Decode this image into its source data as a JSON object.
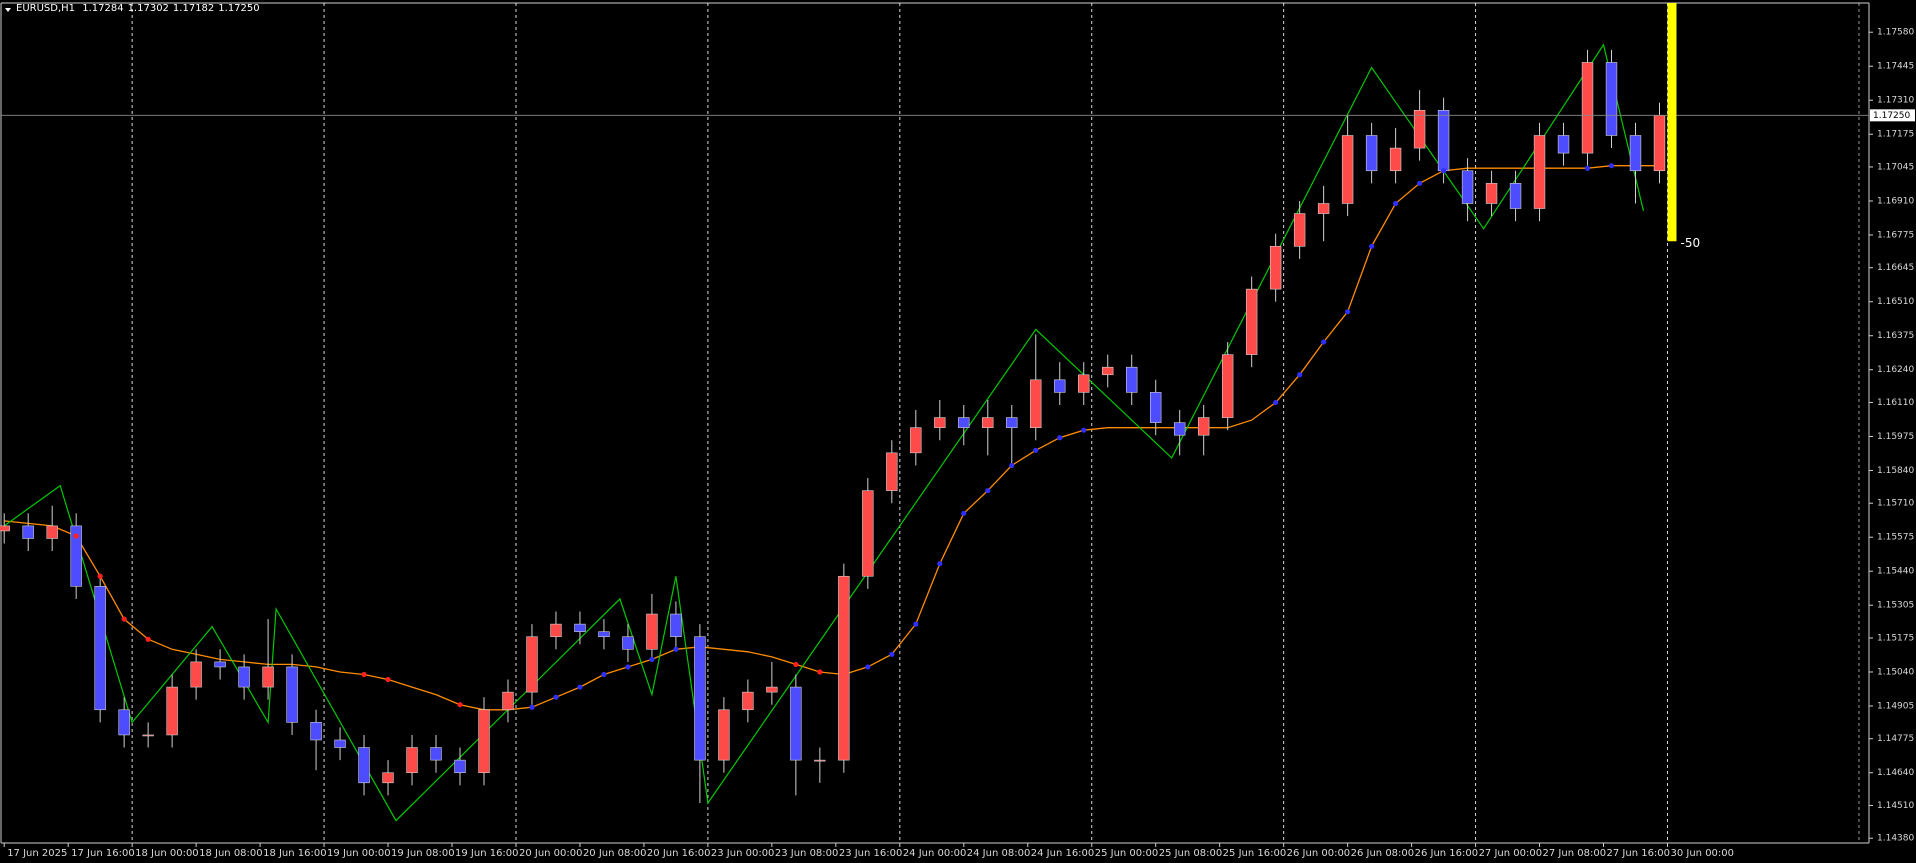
{
  "chart_data": {
    "type": "candlestick",
    "header": {
      "symbol": "EURUSD,H1",
      "open": "1.17284",
      "high": "1.17302",
      "low": "1.17182",
      "close": "1.17250"
    },
    "up_color": "#ff4a4a",
    "down_color": "#4d4dff",
    "x": [
      0,
      3,
      6,
      9,
      12,
      15,
      18,
      21,
      24,
      27,
      30,
      33,
      36,
      39,
      42,
      45,
      48,
      51,
      54,
      57,
      60,
      63,
      66,
      69,
      72,
      75,
      78,
      81,
      84,
      87,
      90,
      93,
      96,
      99,
      102,
      105,
      108,
      111,
      114,
      117,
      120,
      123,
      126,
      129,
      132,
      135,
      138,
      141,
      144,
      147,
      150,
      153,
      156,
      159,
      162,
      165,
      168,
      171,
      174,
      177,
      180,
      183,
      186,
      189,
      192,
      195,
      198,
      201,
      204,
      207
    ],
    "open": [
      1.156,
      1.1562,
      1.1557,
      1.1562,
      1.1538,
      1.1489,
      1.1479,
      1.1479,
      1.1498,
      1.1508,
      1.1506,
      1.1498,
      1.1506,
      1.1484,
      1.1477,
      1.1474,
      1.146,
      1.1464,
      1.1474,
      1.1469,
      1.1464,
      1.1489,
      1.1496,
      1.1518,
      1.1523,
      1.152,
      1.1518,
      1.1513,
      1.1527,
      1.1518,
      1.1469,
      1.1489,
      1.1496,
      1.1498,
      1.1469,
      1.1469,
      1.1542,
      1.1576,
      1.1591,
      1.1601,
      1.1605,
      1.1601,
      1.1605,
      1.1601,
      1.162,
      1.1615,
      1.1622,
      1.1625,
      1.1615,
      1.1603,
      1.1598,
      1.1605,
      1.163,
      1.1656,
      1.1673,
      1.1686,
      1.169,
      1.1717,
      1.1703,
      1.1712,
      1.1727,
      1.1703,
      1.169,
      1.1698,
      1.1688,
      1.1717,
      1.171,
      1.1746,
      1.1717,
      1.1703
    ],
    "high": [
      1.1567,
      1.1567,
      1.157,
      1.1567,
      1.1543,
      1.1494,
      1.1484,
      1.1503,
      1.1513,
      1.1513,
      1.1511,
      1.1525,
      1.1511,
      1.1489,
      1.1482,
      1.1479,
      1.1469,
      1.1479,
      1.1479,
      1.1474,
      1.1494,
      1.1501,
      1.1523,
      1.1528,
      1.1528,
      1.1525,
      1.1523,
      1.1535,
      1.1532,
      1.1523,
      1.1494,
      1.1501,
      1.1508,
      1.1503,
      1.1474,
      1.1547,
      1.1581,
      1.1596,
      1.1608,
      1.1612,
      1.161,
      1.1612,
      1.161,
      1.1638,
      1.1627,
      1.1627,
      1.163,
      1.163,
      1.162,
      1.1608,
      1.161,
      1.1635,
      1.1661,
      1.1678,
      1.1691,
      1.1697,
      1.1725,
      1.1722,
      1.172,
      1.1735,
      1.1732,
      1.1708,
      1.1703,
      1.1703,
      1.1722,
      1.1722,
      1.1751,
      1.1751,
      1.1722,
      1.173
    ],
    "low": [
      1.1555,
      1.1552,
      1.1552,
      1.1533,
      1.1484,
      1.1474,
      1.1474,
      1.1474,
      1.1493,
      1.1501,
      1.1493,
      1.1493,
      1.1479,
      1.1465,
      1.1469,
      1.1455,
      1.1455,
      1.1459,
      1.1464,
      1.1459,
      1.1459,
      1.1484,
      1.1491,
      1.1513,
      1.1515,
      1.1513,
      1.1508,
      1.1508,
      1.1513,
      1.1452,
      1.1464,
      1.1484,
      1.1491,
      1.1455,
      1.146,
      1.1464,
      1.1537,
      1.1571,
      1.1586,
      1.1596,
      1.1594,
      1.159,
      1.1585,
      1.1596,
      1.161,
      1.161,
      1.1617,
      1.161,
      1.1598,
      1.159,
      1.159,
      1.16,
      1.1625,
      1.1651,
      1.1668,
      1.1675,
      1.1685,
      1.1698,
      1.1698,
      1.1707,
      1.1698,
      1.1683,
      1.1685,
      1.1683,
      1.1683,
      1.1705,
      1.1705,
      1.1712,
      1.169,
      1.1698
    ],
    "close": [
      1.1562,
      1.1557,
      1.1562,
      1.1538,
      1.1489,
      1.1479,
      1.1479,
      1.1498,
      1.1508,
      1.1506,
      1.1498,
      1.1506,
      1.1484,
      1.1477,
      1.1474,
      1.146,
      1.1464,
      1.1474,
      1.1469,
      1.1464,
      1.1489,
      1.1496,
      1.1518,
      1.1523,
      1.152,
      1.1518,
      1.1513,
      1.1527,
      1.1518,
      1.1469,
      1.1489,
      1.1496,
      1.1498,
      1.1469,
      1.1469,
      1.1542,
      1.1576,
      1.1591,
      1.1601,
      1.1605,
      1.1601,
      1.1605,
      1.1601,
      1.162,
      1.1615,
      1.1622,
      1.1625,
      1.1615,
      1.1603,
      1.1598,
      1.1605,
      1.163,
      1.1656,
      1.1673,
      1.1686,
      1.169,
      1.1717,
      1.1703,
      1.1712,
      1.1727,
      1.1703,
      1.169,
      1.1698,
      1.1688,
      1.1717,
      1.171,
      1.1746,
      1.1717,
      1.1703,
      1.1725
    ],
    "ma": {
      "color": "#ff8c00",
      "values": [
        1.1564,
        1.1563,
        1.1562,
        1.1558,
        1.1542,
        1.1525,
        1.1517,
        1.1513,
        1.1511,
        1.1509,
        1.1508,
        1.1507,
        1.1507,
        1.1506,
        1.1504,
        1.1503,
        1.1501,
        1.1498,
        1.1495,
        1.1491,
        1.1489,
        1.1489,
        1.149,
        1.1494,
        1.1498,
        1.1503,
        1.1506,
        1.1509,
        1.1513,
        1.1514,
        1.1513,
        1.1512,
        1.151,
        1.1507,
        1.1504,
        1.1503,
        1.1506,
        1.1511,
        1.1523,
        1.1547,
        1.1567,
        1.1576,
        1.1586,
        1.1592,
        1.1597,
        1.16,
        1.1601,
        1.1601,
        1.1601,
        1.1601,
        1.1601,
        1.1601,
        1.1604,
        1.1611,
        1.1622,
        1.1635,
        1.1647,
        1.1673,
        1.169,
        1.1698,
        1.1703,
        1.1704,
        1.1704,
        1.1704,
        1.1704,
        1.1704,
        1.1704,
        1.1705,
        1.1705,
        1.1705
      ]
    },
    "rising_dots": {
      "color": "#2f2fff",
      "values": [
        null,
        null,
        null,
        null,
        null,
        null,
        null,
        null,
        null,
        null,
        null,
        null,
        null,
        null,
        null,
        null,
        null,
        null,
        null,
        null,
        null,
        null,
        1.149,
        1.1494,
        1.1498,
        1.1503,
        1.1506,
        1.1509,
        1.1513,
        null,
        null,
        null,
        null,
        null,
        null,
        null,
        1.1506,
        1.1511,
        1.1523,
        1.1547,
        1.1567,
        1.1576,
        1.1586,
        1.1592,
        1.1597,
        1.16,
        null,
        null,
        null,
        null,
        null,
        null,
        null,
        1.1611,
        1.1622,
        1.1635,
        1.1647,
        1.1673,
        1.169,
        1.1698,
        1.1703,
        null,
        null,
        null,
        null,
        null,
        1.1704,
        1.1705,
        null,
        null
      ]
    },
    "falling_dots": {
      "color": "#ff2020",
      "values": [
        null,
        null,
        null,
        1.1558,
        1.1542,
        1.1525,
        1.1517,
        null,
        null,
        null,
        null,
        null,
        null,
        null,
        null,
        1.1503,
        1.1501,
        null,
        null,
        1.1491,
        null,
        null,
        null,
        null,
        null,
        null,
        null,
        null,
        null,
        null,
        null,
        null,
        null,
        1.1507,
        1.1504,
        null,
        null,
        null,
        null,
        null,
        null,
        null,
        null,
        null,
        null,
        null,
        null,
        null,
        null,
        null,
        null,
        null,
        null,
        null,
        null,
        null,
        null,
        null,
        null,
        null,
        null,
        null,
        null,
        null,
        null,
        null,
        null,
        null,
        null,
        null
      ]
    },
    "zigzag": {
      "color": "#00c800",
      "x": [
        0,
        7,
        16,
        26,
        33,
        34,
        49,
        77,
        81,
        84,
        88,
        129,
        146,
        171,
        185,
        200,
        205
      ],
      "values": [
        1.1562,
        1.1578,
        1.1484,
        1.1522,
        1.1484,
        1.1529,
        1.1445,
        1.1533,
        1.1495,
        1.1542,
        1.1452,
        1.164,
        1.1589,
        1.1744,
        1.168,
        1.1753,
        1.1687
      ]
    },
    "last_price": {
      "value": 1.1725,
      "label": "1.17250"
    },
    "countdown": {
      "label": "-50",
      "color": "#ffff00",
      "low": 1.1675
    },
    "xlim": [
      -0.4,
      233.2
    ],
    "ylim": [
      1.14361,
      1.17696
    ],
    "xticks": [
      {
        "value": 0,
        "label": "17 Jun 2025"
      },
      {
        "value": 8,
        "label": "17 Jun 16:00"
      },
      {
        "value": 16,
        "label": "18 Jun 00:00"
      },
      {
        "value": 24,
        "label": "18 Jun 08:00"
      },
      {
        "value": 32,
        "label": "18 Jun 16:00"
      },
      {
        "value": 40,
        "label": "19 Jun 00:00"
      },
      {
        "value": 48,
        "label": "19 Jun 08:00"
      },
      {
        "value": 56,
        "label": "19 Jun 16:00"
      },
      {
        "value": 64,
        "label": "20 Jun 00:00"
      },
      {
        "value": 72,
        "label": "20 Jun 08:00"
      },
      {
        "value": 80,
        "label": "20 Jun 16:00"
      },
      {
        "value": 88,
        "label": "23 Jun 00:00"
      },
      {
        "value": 96,
        "label": "23 Jun 08:00"
      },
      {
        "value": 104,
        "label": "23 Jun 16:00"
      },
      {
        "value": 112,
        "label": "24 Jun 00:00"
      },
      {
        "value": 120,
        "label": "24 Jun 08:00"
      },
      {
        "value": 128,
        "label": "24 Jun 16:00"
      },
      {
        "value": 136,
        "label": "25 Jun 00:00"
      },
      {
        "value": 144,
        "label": "25 Jun 08:00"
      },
      {
        "value": 152,
        "label": "25 Jun 16:00"
      },
      {
        "value": 160,
        "label": "26 Jun 00:00"
      },
      {
        "value": 168,
        "label": "26 Jun 08:00"
      },
      {
        "value": 176,
        "label": "26 Jun 16:00"
      },
      {
        "value": 184,
        "label": "27 Jun 00:00"
      },
      {
        "value": 192,
        "label": "27 Jun 08:00"
      },
      {
        "value": 200,
        "label": "27 Jun 16:00"
      },
      {
        "value": 208,
        "label": "30 Jun 00:00"
      }
    ],
    "yticks": [
      {
        "value": 1.1438,
        "label": "1.14380"
      },
      {
        "value": 1.1451,
        "label": "1.14510"
      },
      {
        "value": 1.1464,
        "label": "1.14640"
      },
      {
        "value": 1.14775,
        "label": "1.14775"
      },
      {
        "value": 1.14905,
        "label": "1.14905"
      },
      {
        "value": 1.1504,
        "label": "1.15040"
      },
      {
        "value": 1.15175,
        "label": "1.15175"
      },
      {
        "value": 1.15305,
        "label": "1.15305"
      },
      {
        "value": 1.1544,
        "label": "1.15440"
      },
      {
        "value": 1.15575,
        "label": "1.15575"
      },
      {
        "value": 1.1571,
        "label": "1.15710"
      },
      {
        "value": 1.1584,
        "label": "1.15840"
      },
      {
        "value": 1.15975,
        "label": "1.15975"
      },
      {
        "value": 1.1611,
        "label": "1.16110"
      },
      {
        "value": 1.1624,
        "label": "1.16240"
      },
      {
        "value": 1.16375,
        "label": "1.16375"
      },
      {
        "value": 1.1651,
        "label": "1.16510"
      },
      {
        "value": 1.16645,
        "label": "1.16645"
      },
      {
        "value": 1.16775,
        "label": "1.16775"
      },
      {
        "value": 1.1691,
        "label": "1.16910"
      },
      {
        "value": 1.17045,
        "label": "1.17045"
      },
      {
        "value": 1.17175,
        "label": "1.17175"
      },
      {
        "value": 1.1731,
        "label": "1.17310"
      },
      {
        "value": 1.17445,
        "label": "1.17445"
      },
      {
        "value": 1.1758,
        "label": "1.17580"
      }
    ]
  }
}
